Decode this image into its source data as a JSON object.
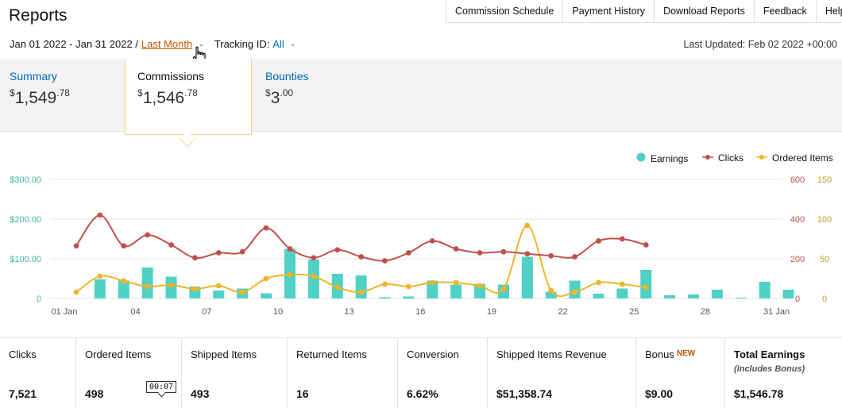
{
  "page": {
    "title": "Reports"
  },
  "nav": [
    {
      "label": "Commission Schedule"
    },
    {
      "label": "Payment History"
    },
    {
      "label": "Download Reports"
    },
    {
      "label": "Feedback"
    },
    {
      "label": "Help"
    }
  ],
  "filters": {
    "date_range": "Jan 01 2022 - Jan 31 2022 /",
    "preset": "Last Month",
    "tracking_label": "Tracking ID:",
    "tracking_value": "All",
    "last_updated": "Last Updated: Feb 02 2022 +00:00"
  },
  "summary": {
    "summary": {
      "label": "Summary",
      "currency": "$",
      "whole": "1,549",
      "cents": ".78"
    },
    "commissions": {
      "label": "Commissions",
      "currency": "$",
      "whole": "1,546",
      "cents": ".78"
    },
    "bounties": {
      "label": "Bounties",
      "currency": "$",
      "whole": "3",
      "cents": ".00"
    }
  },
  "colors": {
    "earnings": "#4fd1c5",
    "clicks": "#c0504d",
    "ordered": "#f0b429"
  },
  "chart_data": {
    "type": "bar",
    "legend_position": "top-right",
    "legend": [
      "Earnings",
      "Clicks",
      "Ordered Items"
    ],
    "x": [
      1,
      2,
      3,
      4,
      5,
      6,
      7,
      8,
      9,
      10,
      11,
      12,
      13,
      14,
      15,
      16,
      17,
      18,
      19,
      20,
      21,
      22,
      23,
      24,
      25,
      26,
      27,
      28,
      29,
      30,
      31
    ],
    "x_tick_labels": [
      "01 Jan",
      "04",
      "07",
      "10",
      "13",
      "16",
      "19",
      "22",
      "25",
      "28",
      "31 Jan"
    ],
    "x_tick_days": [
      1,
      4,
      7,
      10,
      13,
      16,
      19,
      22,
      25,
      28,
      31
    ],
    "left_axis": {
      "ticks": [
        "$300.00",
        "$200.00",
        "$100.00",
        "0"
      ],
      "ylim": [
        0,
        300
      ]
    },
    "right_axis_1": {
      "ticks": [
        "600",
        "400",
        "200",
        "0"
      ],
      "ylim": [
        0,
        600
      ]
    },
    "right_axis_2": {
      "ticks": [
        "150",
        "100",
        "50",
        "0"
      ],
      "ylim": [
        0,
        150
      ]
    },
    "grid": true,
    "series": [
      {
        "name": "Earnings",
        "type": "bar",
        "axis": "left",
        "values": [
          0,
          48,
          45,
          78,
          55,
          30,
          20,
          25,
          13,
          125,
          98,
          62,
          58,
          3,
          5,
          45,
          35,
          37,
          35,
          105,
          17,
          45,
          12,
          25,
          72,
          8,
          10,
          22,
          2,
          42,
          22
        ]
      },
      {
        "name": "Clicks",
        "type": "line",
        "axis": "right_1",
        "values": [
          265,
          420,
          265,
          320,
          270,
          205,
          230,
          235,
          355,
          250,
          205,
          245,
          210,
          190,
          230,
          290,
          250,
          230,
          235,
          225,
          215,
          210,
          290,
          300,
          270,
          null,
          null,
          null,
          null,
          null,
          null
        ]
      },
      {
        "name": "Ordered Items",
        "type": "line",
        "axis": "right_2",
        "values": [
          8,
          28,
          22,
          15,
          17,
          12,
          16,
          8,
          25,
          30,
          28,
          14,
          8,
          18,
          15,
          20,
          20,
          16,
          12,
          92,
          10,
          8,
          20,
          18,
          14,
          null,
          null,
          null,
          null,
          null,
          null
        ]
      }
    ]
  },
  "stats": [
    {
      "label": "Clicks",
      "value": "7,521"
    },
    {
      "label": "Ordered Items",
      "value": "498"
    },
    {
      "label": "Shipped Items",
      "value": "493"
    },
    {
      "label": "Returned Items",
      "value": "16"
    },
    {
      "label": "Conversion",
      "value": "6.62%"
    },
    {
      "label": "Shipped Items Revenue",
      "value": "$51,358.74"
    },
    {
      "label": "Bonus",
      "badge": "NEW",
      "value": "$9.00"
    },
    {
      "label": "Total Earnings",
      "sub": "(Includes Bonus)",
      "value": "$1,546.78"
    }
  ],
  "video_timestamp": "00:07"
}
